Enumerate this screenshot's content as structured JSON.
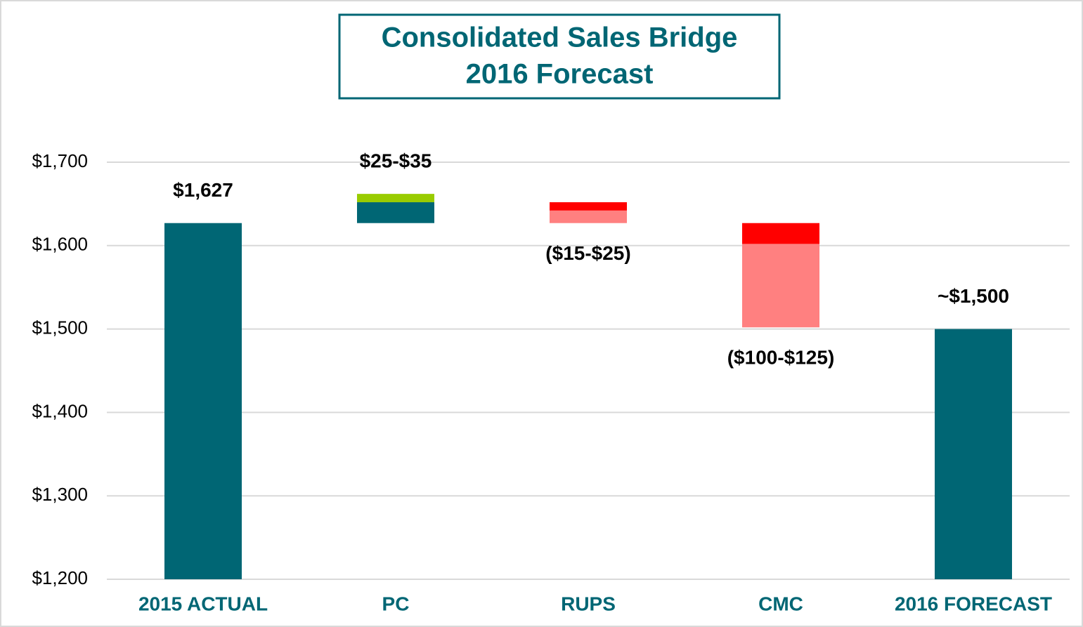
{
  "chart_data": {
    "type": "waterfall",
    "title": "Consolidated Sales Bridge",
    "subtitle": "2016 Forecast",
    "categories": [
      "2015 ACTUAL",
      "PC",
      "RUPS",
      "CMC",
      "2016 FORECAST"
    ],
    "bars": [
      {
        "start": null,
        "segments": [
          {
            "value": 1627,
            "color": "#006674"
          }
        ]
      },
      {
        "start": 1627,
        "segments": [
          {
            "value": 25,
            "color": "#006674"
          },
          {
            "value": 10,
            "color": "#99cc00"
          }
        ]
      },
      {
        "start": 1652,
        "segments": [
          {
            "value": -10,
            "color": "#ff0000"
          },
          {
            "value": -15,
            "color": "#ff8080"
          }
        ]
      },
      {
        "start": 1627,
        "segments": [
          {
            "value": -25,
            "color": "#ff0000"
          },
          {
            "value": -100,
            "color": "#ff8080"
          }
        ]
      },
      {
        "start": null,
        "segments": [
          {
            "value": 1500,
            "color": "#006674"
          }
        ]
      }
    ],
    "value_labels": [
      "$1,627",
      "$25-$35",
      "($15-$25)",
      "($100-$125)",
      "~$1,500"
    ],
    "ylim": [
      1200,
      1700
    ],
    "yticks": [
      {
        "value": 1200,
        "label": "$1,200"
      },
      {
        "value": 1300,
        "label": "$1,300"
      },
      {
        "value": 1400,
        "label": "$1,400"
      },
      {
        "value": 1500,
        "label": "$1,500"
      },
      {
        "value": 1600,
        "label": "$1,600"
      },
      {
        "value": 1700,
        "label": "$1,700"
      }
    ],
    "grid": true
  }
}
